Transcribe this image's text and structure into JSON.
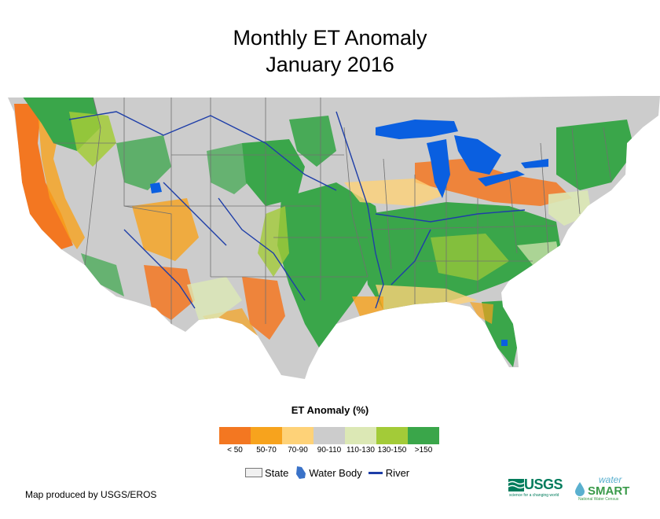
{
  "title": {
    "line1": "Monthly ET Anomaly",
    "line2": "January 2016"
  },
  "legend": {
    "title": "ET Anomaly (%)",
    "classes": [
      {
        "label": "< 50",
        "color": "#f37721"
      },
      {
        "label": "50-70",
        "color": "#f7a31d"
      },
      {
        "label": "70-90",
        "color": "#fed278"
      },
      {
        "label": "90-110",
        "color": "#cccccc"
      },
      {
        "label": "110-130",
        "color": "#dce8b5"
      },
      {
        "label": "130-150",
        "color": "#a3cb38"
      },
      {
        "label": ">150",
        "color": "#3aa64a"
      }
    ]
  },
  "map_keys": {
    "state": "State",
    "water_body": "Water Body",
    "river": "River"
  },
  "credit": "Map produced by USGS/EROS",
  "logos": {
    "usgs": "USGS",
    "usgs_tagline": "science for a changing world",
    "watersmart_top": "water",
    "watersmart_main": "SMART",
    "watersmart_tagline": "National Water Census"
  },
  "colors": {
    "land_gray": "#cccccc",
    "water_blue": "#0a5fe0",
    "river_blue": "#1e3ea8",
    "state_border": "#707070"
  }
}
